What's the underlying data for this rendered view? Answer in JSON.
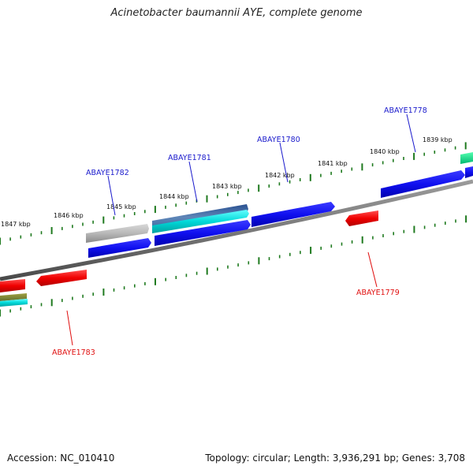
{
  "title": "Acinetobacter baumannii AYE, complete genome",
  "footer": {
    "accession": "Accession: NC_010410",
    "summary": "Topology: circular; Length: 3,936,291 bp; Genes: 3,708"
  },
  "colors": {
    "forward_label": "#1a1acc",
    "reverse_label": "#e01010",
    "backbone": "#7a7a7a",
    "tick": "#1f7a1f"
  },
  "ruler_labels": [
    "1839 kbp",
    "1840 kbp",
    "1841 kbp",
    "1842 kbp",
    "1843 kbp",
    "1844 kbp",
    "1845 kbp",
    "1846 kbp",
    "1847 kbp"
  ],
  "gene_labels": {
    "forward": [
      "ABAYE1778",
      "ABAYE1780",
      "ABAYE1781",
      "ABAYE1782"
    ],
    "reverse": [
      "ABAYE1779",
      "ABAYE1783"
    ]
  }
}
